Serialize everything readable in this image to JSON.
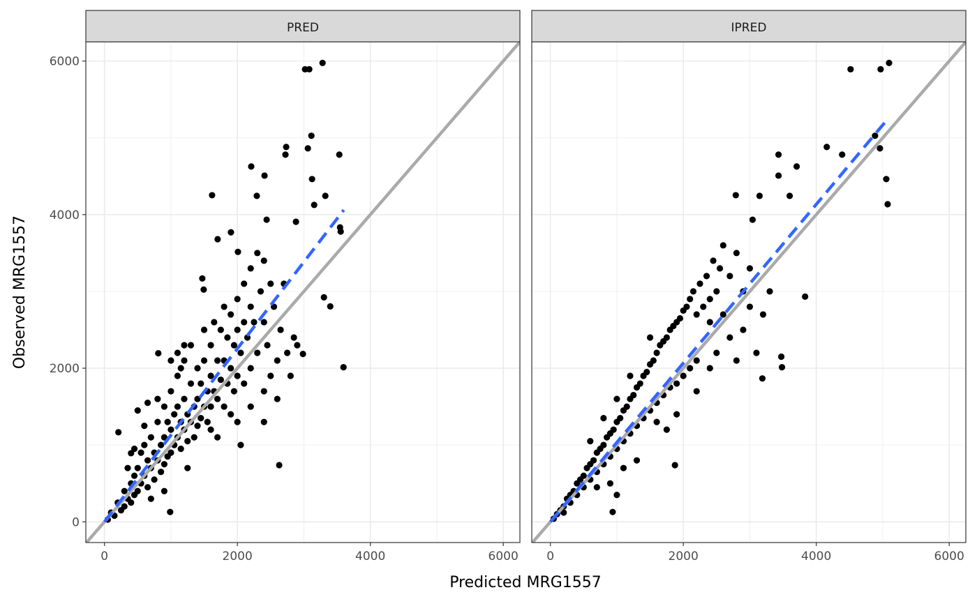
{
  "chart_data": {
    "type": "scatter",
    "xlabel": "Predicted MRG1557",
    "ylabel": "Observed MRG1557",
    "xlim": [
      -280,
      6250
    ],
    "ylim": [
      -270,
      6250
    ],
    "x_ticks": [
      0,
      2000,
      4000,
      6000
    ],
    "y_ticks": [
      0,
      2000,
      4000,
      6000
    ],
    "x_tick_labels": [
      "0",
      "2000",
      "4000",
      "6000"
    ],
    "y_tick_labels": [
      "0",
      "2000",
      "4000",
      "6000"
    ],
    "grid": true,
    "colors": {
      "points": "#000000",
      "identity": "#aaaaaa",
      "smooth": "#3366ff",
      "strip": "#d9d9d9",
      "grid": "#ebebeb",
      "border": "#333333"
    },
    "panels": [
      {
        "name": "PRED",
        "smooth_line": [
          [
            0,
            0
          ],
          [
            3600,
            4060
          ]
        ],
        "identity_line": true,
        "points": [
          [
            3281,
            5975
          ],
          [
            3018,
            5893
          ],
          [
            3081,
            5893
          ],
          [
            3113,
            5027
          ],
          [
            3060,
            4863
          ],
          [
            3533,
            4781
          ],
          [
            2734,
            4881
          ],
          [
            2723,
            4781
          ],
          [
            2208,
            4627
          ],
          [
            2408,
            4508
          ],
          [
            3123,
            4463
          ],
          [
            3323,
            4244
          ],
          [
            2292,
            4244
          ],
          [
            1619,
            4253
          ],
          [
            3155,
            4126
          ],
          [
            2881,
            3907
          ],
          [
            2440,
            3934
          ],
          [
            3544,
            3834
          ],
          [
            3554,
            3780
          ],
          [
            3302,
            2923
          ],
          [
            3397,
            2805
          ],
          [
            3596,
            2013
          ],
          [
            2629,
            738
          ],
          [
            988,
            128
          ],
          [
            2986,
            2186
          ],
          [
            1472,
            3169
          ],
          [
            1903,
            3770
          ],
          [
            1703,
            3680
          ],
          [
            2008,
            3515
          ],
          [
            1493,
            3024
          ],
          [
            810,
            2195
          ],
          [
            210,
            1166
          ],
          [
            400,
            893
          ],
          [
            50,
            30
          ],
          [
            100,
            120
          ],
          [
            150,
            80
          ],
          [
            200,
            250
          ],
          [
            250,
            150
          ],
          [
            300,
            400
          ],
          [
            300,
            200
          ],
          [
            350,
            300
          ],
          [
            400,
            500
          ],
          [
            400,
            250
          ],
          [
            450,
            600
          ],
          [
            450,
            350
          ],
          [
            500,
            700
          ],
          [
            500,
            400
          ],
          [
            550,
            900
          ],
          [
            550,
            500
          ],
          [
            600,
            1000
          ],
          [
            600,
            600
          ],
          [
            650,
            800
          ],
          [
            650,
            450
          ],
          [
            700,
            1100
          ],
          [
            700,
            700
          ],
          [
            750,
            900
          ],
          [
            750,
            550
          ],
          [
            800,
            1300
          ],
          [
            800,
            800
          ],
          [
            850,
            1000
          ],
          [
            850,
            650
          ],
          [
            900,
            1500
          ],
          [
            900,
            1100
          ],
          [
            900,
            750
          ],
          [
            950,
            1300
          ],
          [
            950,
            850
          ],
          [
            1000,
            1700
          ],
          [
            1000,
            1200
          ],
          [
            1000,
            900
          ],
          [
            1050,
            1400
          ],
          [
            1050,
            1000
          ],
          [
            1100,
            1900
          ],
          [
            1100,
            1500
          ],
          [
            1100,
            1100
          ],
          [
            1150,
            1300
          ],
          [
            1150,
            950
          ],
          [
            1200,
            2100
          ],
          [
            1200,
            1600
          ],
          [
            1200,
            1200
          ],
          [
            1250,
            1400
          ],
          [
            1250,
            1050
          ],
          [
            1300,
            2300
          ],
          [
            1300,
            1800
          ],
          [
            1300,
            1300
          ],
          [
            1350,
            1500
          ],
          [
            1350,
            1100
          ],
          [
            1400,
            2000
          ],
          [
            1400,
            1600
          ],
          [
            1400,
            1250
          ],
          [
            1450,
            1800
          ],
          [
            1450,
            1350
          ],
          [
            1500,
            2500
          ],
          [
            1500,
            2100
          ],
          [
            1500,
            1500
          ],
          [
            1550,
            1700
          ],
          [
            1550,
            1300
          ],
          [
            1600,
            2300
          ],
          [
            1600,
            1900
          ],
          [
            1600,
            1500
          ],
          [
            1650,
            2600
          ],
          [
            1650,
            1700
          ],
          [
            1700,
            2100
          ],
          [
            1700,
            1600
          ],
          [
            1750,
            2500
          ],
          [
            1750,
            1850
          ],
          [
            1800,
            2800
          ],
          [
            1800,
            2100
          ],
          [
            1800,
            1500
          ],
          [
            1850,
            2400
          ],
          [
            1850,
            1800
          ],
          [
            1900,
            2700
          ],
          [
            1900,
            2000
          ],
          [
            1950,
            2300
          ],
          [
            1950,
            1700
          ],
          [
            2000,
            2900
          ],
          [
            2000,
            2500
          ],
          [
            2000,
            1900
          ],
          [
            2050,
            2200
          ],
          [
            2050,
            1000
          ],
          [
            2100,
            3100
          ],
          [
            2100,
            2600
          ],
          [
            2100,
            1800
          ],
          [
            2150,
            2400
          ],
          [
            2200,
            3300
          ],
          [
            2200,
            2800
          ],
          [
            2200,
            2000
          ],
          [
            2250,
            2600
          ],
          [
            2300,
            3500
          ],
          [
            2300,
            2200
          ],
          [
            2350,
            3000
          ],
          [
            2400,
            3400
          ],
          [
            2400,
            2600
          ],
          [
            2400,
            1700
          ],
          [
            2450,
            2300
          ],
          [
            2500,
            3100
          ],
          [
            2500,
            1900
          ],
          [
            2550,
            2800
          ],
          [
            2600,
            2100
          ],
          [
            2600,
            1600
          ],
          [
            2650,
            2500
          ],
          [
            2700,
            3100
          ],
          [
            2750,
            2200
          ],
          [
            2800,
            1900
          ],
          [
            2850,
            2400
          ],
          [
            2900,
            2300
          ],
          [
            1600,
            1200
          ],
          [
            1250,
            700
          ],
          [
            900,
            400
          ],
          [
            700,
            300
          ],
          [
            1700,
            1100
          ],
          [
            2000,
            1300
          ],
          [
            2200,
            1500
          ],
          [
            2400,
            1300
          ],
          [
            1900,
            1400
          ],
          [
            1150,
            2000
          ],
          [
            800,
            1600
          ],
          [
            600,
            1250
          ],
          [
            450,
            950
          ],
          [
            350,
            700
          ],
          [
            500,
            1450
          ],
          [
            650,
            1550
          ],
          [
            1000,
            2100
          ],
          [
            1200,
            2300
          ],
          [
            1100,
            2200
          ]
        ]
      },
      {
        "name": "IPRED",
        "smooth_line": [
          [
            0,
            0
          ],
          [
            5080,
            5250
          ]
        ],
        "identity_line": true,
        "points": [
          [
            5095,
            5975
          ],
          [
            4516,
            5893
          ],
          [
            4968,
            5893
          ],
          [
            4884,
            5027
          ],
          [
            4958,
            4863
          ],
          [
            4158,
            4881
          ],
          [
            4389,
            4781
          ],
          [
            3432,
            4781
          ],
          [
            3705,
            4627
          ],
          [
            3432,
            4508
          ],
          [
            5053,
            4463
          ],
          [
            5074,
            4135
          ],
          [
            2789,
            4253
          ],
          [
            3147,
            4244
          ],
          [
            3600,
            4244
          ],
          [
            3042,
            3934
          ],
          [
            3832,
            2932
          ],
          [
            3474,
            2150
          ],
          [
            3189,
            1867
          ],
          [
            3484,
            2013
          ],
          [
            1874,
            738
          ],
          [
            937,
            128
          ],
          [
            50,
            40
          ],
          [
            100,
            100
          ],
          [
            150,
            150
          ],
          [
            200,
            200
          ],
          [
            200,
            120
          ],
          [
            250,
            300
          ],
          [
            300,
            350
          ],
          [
            300,
            250
          ],
          [
            350,
            400
          ],
          [
            400,
            500
          ],
          [
            400,
            350
          ],
          [
            450,
            550
          ],
          [
            500,
            600
          ],
          [
            500,
            450
          ],
          [
            550,
            700
          ],
          [
            600,
            750
          ],
          [
            600,
            550
          ],
          [
            650,
            800
          ],
          [
            700,
            900
          ],
          [
            700,
            650
          ],
          [
            750,
            950
          ],
          [
            800,
            1000
          ],
          [
            800,
            750
          ],
          [
            850,
            1100
          ],
          [
            900,
            1150
          ],
          [
            900,
            850
          ],
          [
            950,
            1200
          ],
          [
            1000,
            1300
          ],
          [
            1000,
            950
          ],
          [
            1050,
            1350
          ],
          [
            1100,
            1450
          ],
          [
            1100,
            1050
          ],
          [
            1150,
            1500
          ],
          [
            1200,
            1600
          ],
          [
            1200,
            1150
          ],
          [
            1250,
            1650
          ],
          [
            1300,
            1750
          ],
          [
            1300,
            1250
          ],
          [
            1350,
            1800
          ],
          [
            1400,
            1900
          ],
          [
            1400,
            1350
          ],
          [
            1450,
            1950
          ],
          [
            1500,
            2050
          ],
          [
            1500,
            1450
          ],
          [
            1550,
            2100
          ],
          [
            1600,
            2200
          ],
          [
            1600,
            1550
          ],
          [
            1650,
            2300
          ],
          [
            1700,
            2350
          ],
          [
            1700,
            1650
          ],
          [
            1750,
            2400
          ],
          [
            1800,
            2500
          ],
          [
            1800,
            1750
          ],
          [
            1850,
            2550
          ],
          [
            1900,
            2600
          ],
          [
            1900,
            1800
          ],
          [
            1950,
            2650
          ],
          [
            2000,
            2750
          ],
          [
            2000,
            1900
          ],
          [
            2050,
            2800
          ],
          [
            2100,
            2900
          ],
          [
            2100,
            2000
          ],
          [
            2150,
            3000
          ],
          [
            2200,
            2700
          ],
          [
            2200,
            2100
          ],
          [
            2250,
            3100
          ],
          [
            2300,
            2800
          ],
          [
            2350,
            3200
          ],
          [
            2400,
            2600
          ],
          [
            2400,
            2900
          ],
          [
            2450,
            3400
          ],
          [
            2500,
            3000
          ],
          [
            2500,
            2200
          ],
          [
            2550,
            3300
          ],
          [
            2600,
            2700
          ],
          [
            2600,
            3600
          ],
          [
            2700,
            3200
          ],
          [
            2700,
            2400
          ],
          [
            2800,
            3500
          ],
          [
            2800,
            2100
          ],
          [
            2900,
            3000
          ],
          [
            2900,
            2500
          ],
          [
            3000,
            2800
          ],
          [
            3000,
            3300
          ],
          [
            3100,
            2200
          ],
          [
            3200,
            2700
          ],
          [
            3300,
            3000
          ],
          [
            1200,
            1900
          ],
          [
            1000,
            1600
          ],
          [
            800,
            1350
          ],
          [
            600,
            1050
          ],
          [
            1500,
            2400
          ],
          [
            1300,
            800
          ],
          [
            1600,
            1300
          ],
          [
            1900,
            1400
          ],
          [
            2200,
            1700
          ],
          [
            2400,
            2000
          ],
          [
            1100,
            700
          ],
          [
            900,
            500
          ],
          [
            700,
            450
          ],
          [
            1000,
            350
          ],
          [
            1750,
            1200
          ]
        ]
      }
    ]
  }
}
